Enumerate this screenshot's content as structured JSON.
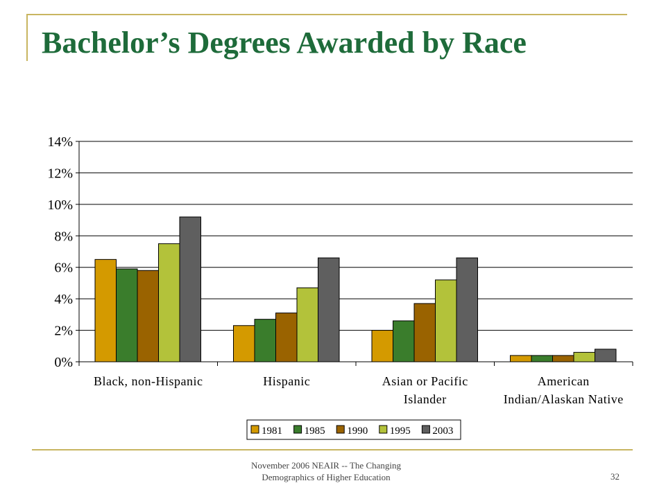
{
  "slide": {
    "title": "Bachelor’s Degrees Awarded by Race",
    "footer_line1": "November 2006 NEAIR -- The Changing",
    "footer_line2": "Demographics of Higher Education",
    "page_number": "32"
  },
  "chart_data": {
    "type": "bar",
    "title": "",
    "xlabel": "",
    "ylabel": "",
    "categories": [
      [
        "Black, non-Hispanic"
      ],
      [
        "Hispanic"
      ],
      [
        "Asian or Pacific",
        "Islander"
      ],
      [
        "American",
        "Indian/Alaskan Native"
      ]
    ],
    "ylim": [
      0,
      14
    ],
    "yticks": [
      "0%",
      "2%",
      "4%",
      "6%",
      "8%",
      "10%",
      "12%",
      "14%"
    ],
    "grid": true,
    "legend_position": "bottom",
    "series": [
      {
        "name": "1981",
        "color": "#d49a00",
        "values": [
          6.5,
          2.3,
          2.0,
          0.4
        ]
      },
      {
        "name": "1985",
        "color": "#3a7d2c",
        "values": [
          5.9,
          2.7,
          2.6,
          0.4
        ]
      },
      {
        "name": "1990",
        "color": "#9a6300",
        "values": [
          5.8,
          3.1,
          3.7,
          0.4
        ]
      },
      {
        "name": "1995",
        "color": "#b3c23a",
        "values": [
          7.5,
          4.7,
          5.2,
          0.6
        ]
      },
      {
        "name": "2003",
        "color": "#5f5f5f",
        "values": [
          9.2,
          6.6,
          6.6,
          0.8
        ]
      }
    ]
  }
}
